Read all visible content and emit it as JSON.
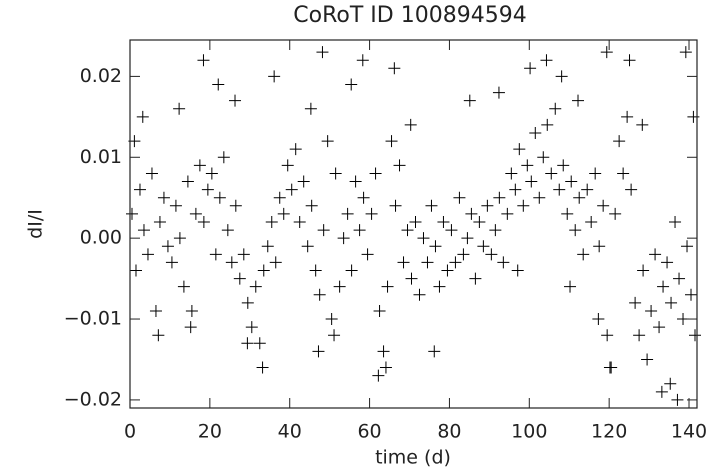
{
  "chart_data": {
    "type": "scatter",
    "title": "CoRoT ID 100894594",
    "x_label": "time (d)",
    "y_label": "dI/I",
    "color": "#000000",
    "x": [
      0.5,
      1.5,
      2.5,
      3.5,
      4.5,
      5.5,
      6.5,
      7.5,
      8.5,
      9.5,
      10.5,
      11.5,
      12.5,
      13.5,
      14.5,
      15.5,
      16.5,
      17.5,
      18.5,
      19.5,
      20.5,
      21.5,
      22.5,
      23.5,
      24.5,
      25.5,
      26.5,
      27.5,
      28.5,
      29.5,
      30.5,
      31.5,
      32.5,
      33.5,
      34.5,
      35.5,
      36.5,
      37.5,
      38.5,
      39.5,
      40.5,
      41.5,
      42.5,
      43.5,
      44.5,
      45.5,
      46.5,
      47.5,
      48.5,
      49.5,
      50.5,
      51.5,
      52.5,
      53.5,
      54.5,
      55.5,
      56.5,
      57.5,
      58.5,
      59.5,
      60.5,
      61.5,
      62.5,
      63.5,
      64.5,
      65.5,
      66.5,
      67.5,
      68.5,
      69.5,
      70.5,
      71.5,
      72.5,
      73.5,
      74.5,
      75.5,
      76.5,
      77.5,
      78.5,
      79.5,
      80.5,
      81.5,
      82.5,
      83.5,
      84.5,
      85.5,
      86.5,
      87.5,
      88.5,
      89.5,
      90.5,
      91.5,
      92.5,
      93.5,
      94.5,
      95.5,
      96.5,
      97.5,
      98.5,
      99.5,
      100.5,
      101.5,
      102.5,
      103.5,
      104.5,
      105.5,
      106.5,
      107.5,
      108.5,
      109.5,
      110.5,
      111.5,
      112.5,
      113.5,
      114.5,
      115.5,
      116.5,
      117.5,
      118.5,
      119.5,
      120.5,
      121.5,
      122.5,
      123.5,
      124.5,
      125.5,
      126.5,
      127.5,
      128.5,
      129.5,
      130.5,
      131.5,
      132.5,
      133.5,
      134.5,
      135.5,
      136.5,
      137.5,
      138.5,
      139.5,
      140.5,
      141.5,
      3.2,
      7.1,
      12.3,
      15.2,
      18.4,
      22.1,
      26.3,
      33.2,
      36.1,
      45.3,
      48.2,
      51.1,
      55.4,
      62.2,
      64.1,
      70.3,
      76.2,
      85.1,
      92.4,
      100.2,
      104.3,
      108.1,
      112.2,
      117.3,
      119.4,
      120.2,
      125.1,
      128.3,
      133.2,
      137.1,
      139.2,
      141.1,
      1.1,
      47.2,
      58.3,
      97.1,
      110.2,
      135.3,
      29.4,
      66.2
    ],
    "values": [
      0.003,
      -0.004,
      0.006,
      0.001,
      -0.002,
      0.008,
      -0.009,
      0.002,
      0.005,
      -0.001,
      -0.003,
      0.004,
      0.0,
      -0.006,
      0.007,
      -0.009,
      0.003,
      0.009,
      0.002,
      0.006,
      0.008,
      -0.002,
      0.005,
      0.01,
      0.001,
      -0.003,
      0.004,
      -0.005,
      -0.002,
      -0.008,
      -0.011,
      -0.006,
      -0.013,
      -0.004,
      -0.001,
      0.002,
      -0.003,
      0.005,
      0.003,
      0.009,
      0.006,
      0.011,
      0.002,
      0.007,
      -0.001,
      0.004,
      -0.004,
      -0.007,
      0.001,
      0.012,
      -0.01,
      0.008,
      -0.006,
      0.0,
      0.003,
      -0.004,
      0.007,
      0.001,
      0.005,
      -0.002,
      0.003,
      0.008,
      -0.009,
      -0.014,
      -0.006,
      0.012,
      0.004,
      0.009,
      -0.003,
      0.001,
      -0.005,
      0.002,
      -0.007,
      0.0,
      -0.003,
      0.004,
      -0.001,
      -0.006,
      0.002,
      -0.004,
      0.001,
      -0.003,
      0.005,
      -0.002,
      0.0,
      0.003,
      -0.005,
      0.002,
      -0.001,
      0.004,
      -0.002,
      0.001,
      0.005,
      -0.003,
      0.003,
      0.008,
      0.006,
      0.011,
      0.004,
      0.009,
      0.007,
      0.013,
      0.005,
      0.01,
      0.014,
      0.008,
      0.016,
      0.006,
      0.009,
      0.003,
      0.007,
      0.001,
      0.005,
      -0.002,
      0.006,
      0.002,
      0.008,
      -0.001,
      0.004,
      -0.012,
      -0.016,
      0.003,
      0.012,
      0.008,
      0.015,
      0.006,
      -0.008,
      -0.012,
      -0.004,
      -0.015,
      -0.009,
      -0.002,
      -0.011,
      -0.006,
      -0.003,
      -0.008,
      0.002,
      -0.005,
      -0.01,
      -0.001,
      -0.007,
      -0.012,
      0.015,
      -0.012,
      0.016,
      -0.011,
      0.022,
      0.019,
      0.017,
      -0.016,
      0.02,
      0.016,
      0.023,
      -0.012,
      0.019,
      -0.017,
      -0.016,
      0.014,
      -0.014,
      0.017,
      0.018,
      0.021,
      0.022,
      0.02,
      0.017,
      -0.01,
      0.023,
      -0.016,
      0.022,
      0.014,
      -0.019,
      -0.02,
      0.023,
      0.015,
      0.012,
      -0.014,
      0.022,
      -0.004,
      -0.006,
      -0.018,
      -0.013,
      0.021
    ],
    "xlim": [
      0,
      142
    ],
    "ylim": [
      -0.021,
      0.0245
    ],
    "xticks": [
      0,
      20,
      40,
      60,
      80,
      100,
      120,
      140
    ],
    "yticks": [
      {
        "value": -0.02,
        "label": "−0.02"
      },
      {
        "value": -0.01,
        "label": "−0.01"
      },
      {
        "value": 0,
        "label": "0.00"
      },
      0.01,
      0.02
    ]
  }
}
